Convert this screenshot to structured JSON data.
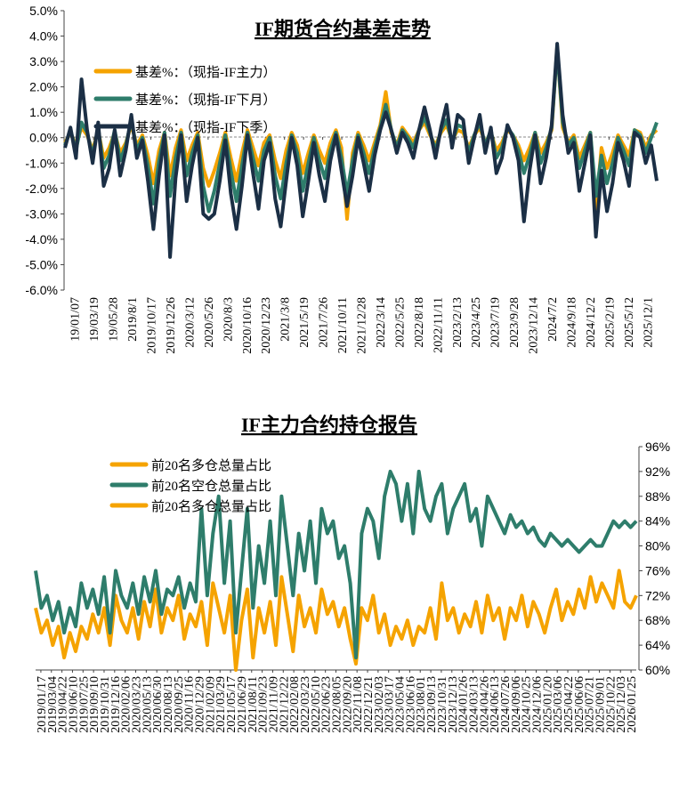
{
  "chart_data": [
    {
      "type": "line",
      "title": "IF期货合约基差走势",
      "y_unit": "%",
      "ylim": [
        -6,
        5
      ],
      "y_ticks": [
        5,
        4,
        3,
        2,
        1,
        0,
        -1,
        -2,
        -3,
        -4,
        -5,
        -6
      ],
      "y_tick_labels": [
        "5.0%",
        "4.0%",
        "3.0%",
        "2.0%",
        "1.0%",
        "0.0%",
        "-1.0%",
        "-2.0%",
        "-3.0%",
        "-4.0%",
        "-5.0%",
        "-6.0%"
      ],
      "x_tick_labels": [
        "19/01/07",
        "19/03/19",
        "19/05/28",
        "2019/8/1",
        "2019/10/17",
        "2019/12/26",
        "2020/3/12",
        "2020/5/26",
        "2020/8/3",
        "2020/10/16",
        "2020/12/23",
        "2021/3/8",
        "2021/5/19",
        "2021/7/26",
        "2021/10/11",
        "2021/12/28",
        "2022/3/14",
        "2022/5/25",
        "2022/8/18",
        "2022/11/11",
        "2023/2/13",
        "2023/4/25",
        "2023/7/19",
        "2023/9/28",
        "2023/12/14",
        "2024/7/2",
        "2024/9/18",
        "2024/12/2",
        "2025/2/19",
        "2025/5/12",
        "2025/12/1"
      ],
      "legend_position": "top-left",
      "series": [
        {
          "name": "基差%：（现指-IF主力）",
          "color": "#F5A300",
          "values": [
            -0.2,
            0.2,
            -0.3,
            0.4,
            0.1,
            -0.5,
            0.3,
            -0.8,
            -0.4,
            0.2,
            -0.6,
            -0.2,
            0.5,
            -0.3,
            0.1,
            -0.7,
            -1.8,
            -0.5,
            0.2,
            -1.5,
            -0.4,
            0.3,
            -0.9,
            -0.3,
            0.2,
            -1.2,
            -1.9,
            -1.3,
            -0.6,
            0.2,
            -0.8,
            -1.7,
            -0.6,
            0.3,
            -0.4,
            -1.1,
            -0.2,
            0.1,
            -0.9,
            -1.6,
            -0.5,
            0.2,
            -0.3,
            -1.4,
            -0.6,
            0.1,
            -0.5,
            -1.0,
            -0.2,
            0.3,
            -0.4,
            -3.2,
            -0.6,
            0.2,
            -0.3,
            -0.9,
            -0.2,
            0.5,
            1.8,
            0.2,
            -0.3,
            0.4,
            0.1,
            -0.2,
            0.3,
            0.6,
            0.1,
            -0.3,
            0.2,
            0.5,
            -0.1,
            0.3,
            0.2,
            -0.4,
            0.1,
            0.4,
            -0.2,
            0.2,
            -0.5,
            -0.2,
            0.3,
            0.1,
            -0.3,
            -0.9,
            -0.4,
            0.2,
            -0.6,
            -0.2,
            0.3,
            3.6,
            0.4,
            -0.2,
            0.1,
            -0.8,
            -0.3,
            0.2,
            -2.8,
            -0.4,
            -1.2,
            -0.6,
            0.1,
            -0.3,
            -0.7,
            0.3,
            0.2,
            -0.4,
            0.1,
            0.3
          ]
        },
        {
          "name": "基差%：（现指-IF下月）",
          "color": "#2E7D6B",
          "values": [
            -0.3,
            0.3,
            -0.5,
            0.6,
            0.2,
            -0.7,
            0.4,
            -1.2,
            -0.7,
            0.3,
            -0.9,
            -0.3,
            0.7,
            -0.5,
            0.0,
            -1.1,
            -2.6,
            -0.9,
            0.2,
            -2.3,
            -0.8,
            0.2,
            -1.5,
            -0.6,
            0.1,
            -1.9,
            -2.9,
            -2.1,
            -1.0,
            0.1,
            -1.3,
            -2.5,
            -1.1,
            0.2,
            -0.8,
            -1.7,
            -0.5,
            0.0,
            -1.5,
            -2.4,
            -1.0,
            0.1,
            -0.6,
            -2.1,
            -1.0,
            0.0,
            -0.9,
            -1.6,
            -0.5,
            0.2,
            -0.8,
            -2.2,
            -0.9,
            0.1,
            -0.6,
            -1.4,
            -0.4,
            0.4,
            1.3,
            0.3,
            -0.4,
            0.3,
            0.0,
            -0.4,
            0.3,
            0.8,
            0.2,
            -0.5,
            0.3,
            0.7,
            -0.2,
            0.5,
            0.4,
            -0.6,
            0.1,
            0.6,
            -0.3,
            0.3,
            -0.8,
            -0.4,
            0.4,
            0.1,
            -0.5,
            -1.4,
            -0.7,
            0.2,
            -1.0,
            -0.4,
            0.4,
            3.5,
            0.6,
            -0.3,
            0.0,
            -1.2,
            -0.5,
            0.2,
            -2.3,
            -0.7,
            -1.8,
            -1.0,
            0.0,
            -0.5,
            -1.1,
            0.3,
            0.1,
            -0.6,
            0.0,
            0.6
          ]
        },
        {
          "name": "基差%：（现指-IF下季）",
          "color": "#1B2F45",
          "values": [
            -0.4,
            0.4,
            -0.8,
            2.3,
            0.3,
            -1.0,
            0.6,
            -1.9,
            -1.2,
            0.3,
            -1.5,
            -0.5,
            0.9,
            -0.8,
            -0.1,
            -1.7,
            -3.6,
            -1.5,
            0.1,
            -4.7,
            -1.6,
            0.1,
            -2.5,
            -1.1,
            0.0,
            -3.0,
            -3.2,
            -3.0,
            -1.7,
            -0.1,
            -2.2,
            -3.6,
            -1.9,
            0.1,
            -1.4,
            -2.8,
            -0.9,
            -0.2,
            -2.4,
            -3.5,
            -1.7,
            0.0,
            -1.1,
            -3.1,
            -1.7,
            -0.2,
            -1.5,
            -2.5,
            -0.9,
            0.1,
            -1.3,
            -2.7,
            -1.5,
            0.0,
            -1.0,
            -2.1,
            -0.7,
            0.3,
            1.0,
            0.3,
            -0.6,
            0.2,
            -0.2,
            -0.8,
            0.3,
            1.2,
            0.3,
            -0.8,
            0.4,
            1.3,
            -0.4,
            0.9,
            0.7,
            -1.0,
            0.0,
            0.9,
            -0.6,
            0.4,
            -1.4,
            -0.8,
            0.5,
            0.0,
            -0.9,
            -3.3,
            -1.3,
            0.1,
            -1.8,
            -0.8,
            0.5,
            3.7,
            0.9,
            -0.6,
            -0.2,
            -2.1,
            -1.0,
            0.1,
            -3.9,
            -1.3,
            -2.9,
            -1.8,
            -0.2,
            -0.9,
            -1.9,
            0.2,
            0.0,
            -1.0,
            -0.3,
            -1.7
          ]
        }
      ]
    },
    {
      "type": "line",
      "title": "IF主力合约持仓报告",
      "y_unit": "%",
      "ylim": [
        60,
        96
      ],
      "y_axis_side": "right",
      "y_ticks": [
        96,
        92,
        88,
        84,
        80,
        76,
        72,
        68,
        64,
        60
      ],
      "y_tick_labels": [
        "96%",
        "92%",
        "88%",
        "84%",
        "80%",
        "76%",
        "72%",
        "68%",
        "64%",
        "60%"
      ],
      "x_tick_labels": [
        "2019/01/17",
        "2019/03/04",
        "2019/04/22",
        "2019/06/10",
        "2019/07/25",
        "2019/09/10",
        "2019/10/31",
        "2019/12/16",
        "2020/02/06",
        "2020/03/23",
        "2020/05/13",
        "2020/06/30",
        "2020/08/13",
        "2020/09/25",
        "2020/11/16",
        "2020/12/29",
        "2021/02/09",
        "2021/03/29",
        "2021/05/17",
        "2021/06/29",
        "2021/08/11",
        "2021/09/23",
        "2021/11/09",
        "2021/12/22",
        "2022/02/08",
        "2022/03/23",
        "2022/05/10",
        "2022/06/23",
        "2022/08/05",
        "2022/09/20",
        "2022/11/08",
        "2022/12/21",
        "2023/02/03",
        "2023/03/17",
        "2023/05/04",
        "2023/06/16",
        "2023/08/01",
        "2023/09/13",
        "2023/10/31",
        "2023/12/13",
        "2024/01/26",
        "2024/03/13",
        "2024/04/26",
        "2024/06/13",
        "2024/07/26",
        "2024/09/06",
        "2024/10/25",
        "2024/12/06",
        "2025/01/20",
        "2025/03/06",
        "2025/04/22",
        "2025/06/06",
        "2025/07/21",
        "2025/09/01",
        "2025/10/22",
        "2025/12/03",
        "2026/01/25"
      ],
      "legend_position": "top-left",
      "series": [
        {
          "name": "前20名多仓总量占比",
          "color": "#F5A300",
          "values": [
            70,
            66,
            68,
            64,
            67,
            62,
            66,
            63,
            67,
            65,
            69,
            66,
            70,
            64,
            72,
            68,
            66,
            70,
            65,
            71,
            67,
            73,
            66,
            70,
            68,
            72,
            65,
            69,
            67,
            71,
            64,
            74,
            70,
            66,
            72,
            60,
            68,
            73,
            62,
            70,
            66,
            71,
            64,
            75,
            69,
            63,
            72,
            67,
            70,
            66,
            73,
            69,
            71,
            67,
            70,
            65,
            61,
            70,
            68,
            72,
            66,
            69,
            64,
            67,
            65,
            68,
            64,
            67,
            66,
            70,
            65,
            74,
            68,
            70,
            66,
            69,
            67,
            71,
            66,
            72,
            68,
            70,
            65,
            70,
            68,
            72,
            67,
            71,
            69,
            66,
            70,
            73,
            68,
            71,
            69,
            73,
            70,
            75,
            71,
            74,
            72,
            70,
            76,
            71,
            70,
            72
          ]
        },
        {
          "name": "前20名空仓总量占比",
          "color": "#2E7D6B",
          "values": [
            76,
            70,
            72,
            68,
            71,
            66,
            70,
            67,
            74,
            70,
            73,
            69,
            75,
            66,
            76,
            72,
            70,
            74,
            69,
            75,
            71,
            76,
            69,
            73,
            72,
            75,
            70,
            74,
            71,
            86,
            72,
            82,
            88,
            74,
            84,
            66,
            76,
            86,
            70,
            80,
            74,
            84,
            72,
            88,
            80,
            72,
            82,
            76,
            84,
            74,
            86,
            82,
            84,
            78,
            80,
            74,
            62,
            82,
            86,
            84,
            78,
            88,
            92,
            90,
            84,
            90,
            82,
            92,
            86,
            84,
            88,
            90,
            82,
            86,
            88,
            90,
            84,
            86,
            80,
            88,
            86,
            84,
            82,
            85,
            83,
            84,
            82,
            83,
            81,
            80,
            82,
            81,
            80,
            81,
            80,
            79,
            80,
            81,
            80,
            80,
            82,
            84,
            83,
            84,
            83,
            84
          ]
        },
        {
          "name": "前20名多仓总量占比",
          "color": "#F5A300",
          "values": []
        }
      ]
    }
  ]
}
